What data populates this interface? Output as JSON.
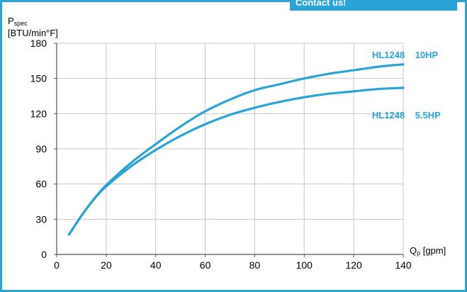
{
  "banner": {
    "label": "Contact us!"
  },
  "colors": {
    "accent": "#2aa3d8",
    "grid": "#c8c8c8",
    "axis": "#555555"
  },
  "chart_data": {
    "type": "line",
    "y_label": {
      "main": "P",
      "sub": "spec",
      "unit": "[BTU/min°F]"
    },
    "x_label": {
      "main": "Q",
      "sub": "p",
      "unit": " [gpm]"
    },
    "xlim": [
      0,
      140
    ],
    "ylim": [
      0,
      180
    ],
    "x_ticks": [
      0,
      20,
      40,
      60,
      80,
      100,
      120,
      140
    ],
    "y_ticks": [
      0,
      30,
      60,
      90,
      120,
      150,
      180
    ],
    "grid": true,
    "series": [
      {
        "name": "HL1248    10HP",
        "x": [
          5,
          10,
          15,
          20,
          30,
          40,
          50,
          60,
          70,
          80,
          90,
          100,
          110,
          120,
          130,
          140
        ],
        "y": [
          17,
          33,
          47,
          59,
          78,
          94,
          109,
          122,
          132,
          140,
          145,
          150,
          154,
          157,
          160,
          162
        ]
      },
      {
        "name": "HL1248    5.5HP",
        "x": [
          5,
          10,
          15,
          20,
          30,
          40,
          50,
          60,
          70,
          80,
          90,
          100,
          110,
          120,
          130,
          140
        ],
        "y": [
          17,
          33,
          47,
          58,
          75,
          89,
          101,
          111,
          119,
          125,
          130,
          134,
          137,
          139,
          141,
          142
        ]
      }
    ]
  }
}
